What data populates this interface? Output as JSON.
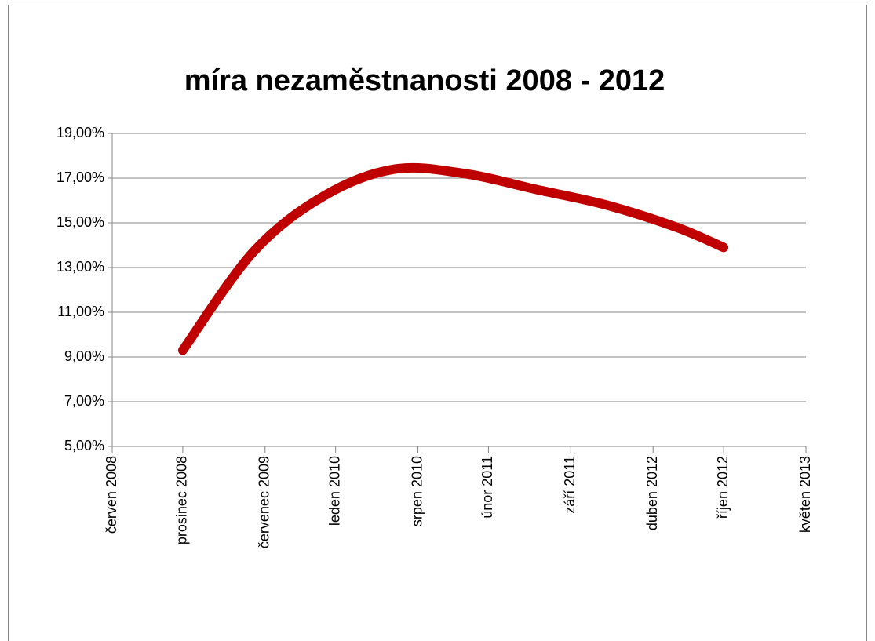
{
  "chart_data": {
    "type": "line",
    "title": "míra nezaměstnanosti 2008 - 2012",
    "x": [
      "2008-12",
      "2009-06",
      "2009-12",
      "2010-06",
      "2010-12",
      "2011-06",
      "2011-12",
      "2012-06",
      "2012-10"
    ],
    "series": [
      {
        "name": "míra nezaměstnanosti",
        "color": "#c00000",
        "values": [
          9.3,
          13.7,
          16.2,
          17.4,
          17.2,
          16.5,
          15.8,
          14.8,
          13.9
        ]
      }
    ],
    "smooth": true,
    "xlim": [
      "2008-06",
      "2013-05"
    ],
    "xticks": [
      {
        "value": "2008-06",
        "label": "červen 2008"
      },
      {
        "value": "2008-12",
        "label": "prosinec 2008"
      },
      {
        "value": "2009-07",
        "label": "červenec 2009"
      },
      {
        "value": "2010-01",
        "label": "leden 2010"
      },
      {
        "value": "2010-08",
        "label": "srpen 2010"
      },
      {
        "value": "2011-02",
        "label": "únor 2011"
      },
      {
        "value": "2011-09",
        "label": "září 2011"
      },
      {
        "value": "2012-04",
        "label": "duben 2012"
      },
      {
        "value": "2012-10",
        "label": "říjen 2012"
      },
      {
        "value": "2013-05",
        "label": "květen 2013"
      }
    ],
    "ylim": [
      5,
      19
    ],
    "yticks": [
      {
        "value": 5,
        "label": "5,00%"
      },
      {
        "value": 7,
        "label": "7,00%"
      },
      {
        "value": 9,
        "label": "9,00%"
      },
      {
        "value": 11,
        "label": "11,00%"
      },
      {
        "value": 13,
        "label": "13,00%"
      },
      {
        "value": 15,
        "label": "15,00%"
      },
      {
        "value": 17,
        "label": "17,00%"
      },
      {
        "value": 19,
        "label": "19,00%"
      }
    ],
    "grid": true
  }
}
